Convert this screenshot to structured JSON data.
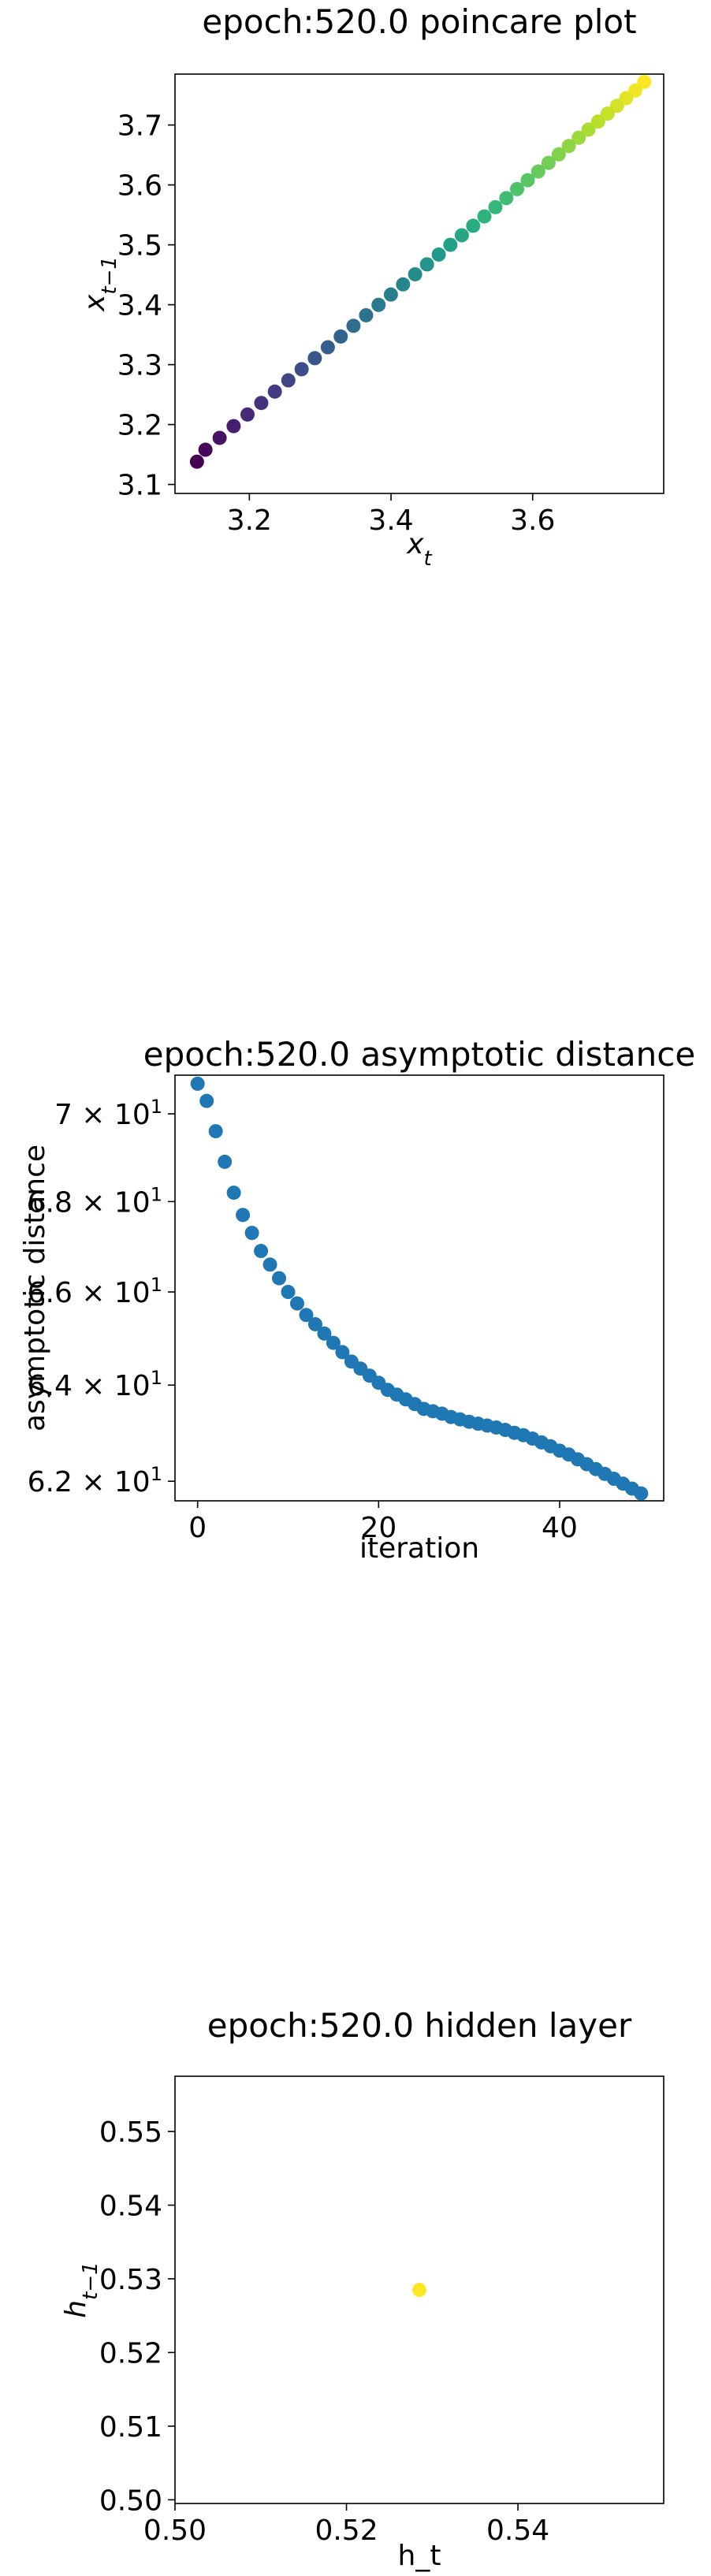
{
  "chart_data": [
    {
      "type": "scatter",
      "title": "epoch:520.0 poincare plot",
      "xlabel": "x_t",
      "ylabel": "x_{t-1}",
      "xlim": [
        3.095,
        3.785
      ],
      "ylim": [
        3.085,
        3.785
      ],
      "xticks": [
        3.2,
        3.4,
        3.6
      ],
      "xtick_labels": [
        "3.2",
        "3.4",
        "3.6"
      ],
      "yticks": [
        3.1,
        3.2,
        3.3,
        3.4,
        3.5,
        3.6,
        3.7
      ],
      "ytick_labels": [
        "3.1",
        "3.2",
        "3.3",
        "3.4",
        "3.5",
        "3.6",
        "3.7"
      ],
      "colormap": "viridis",
      "x": [
        3.7575,
        3.7448,
        3.732,
        3.719,
        3.7058,
        3.6924,
        3.6788,
        3.665,
        3.651,
        3.6368,
        3.6224,
        3.6078,
        3.593,
        3.578,
        3.5628,
        3.5474,
        3.5318,
        3.516,
        3.5,
        3.4838,
        3.4674,
        3.4508,
        3.434,
        3.417,
        3.3998,
        3.3824,
        3.3648,
        3.347,
        3.329,
        3.3108,
        3.2924,
        3.2738,
        3.255,
        3.236,
        3.2168,
        3.1974,
        3.1778,
        3.158,
        3.138,
        3.126
      ],
      "y": [
        3.772,
        3.7575,
        3.7448,
        3.732,
        3.719,
        3.7058,
        3.6924,
        3.6788,
        3.665,
        3.651,
        3.6368,
        3.6224,
        3.6078,
        3.593,
        3.578,
        3.5628,
        3.5474,
        3.5318,
        3.516,
        3.5,
        3.4838,
        3.4674,
        3.4508,
        3.434,
        3.417,
        3.3998,
        3.3824,
        3.3648,
        3.347,
        3.329,
        3.3108,
        3.2924,
        3.2738,
        3.255,
        3.236,
        3.2168,
        3.1974,
        3.1778,
        3.158,
        3.138
      ]
    },
    {
      "type": "scatter",
      "title": "epoch:520.0 asymptotic distance",
      "xlabel": "iteration",
      "ylabel": "asymptotic distance",
      "xlim": [
        -2.5,
        51.5
      ],
      "ylim": [
        61.6,
        70.9
      ],
      "yscale": "log",
      "xticks": [
        0,
        20,
        40
      ],
      "xtick_labels": [
        "0",
        "20",
        "40"
      ],
      "yticks": [
        62,
        64,
        66,
        68,
        70
      ],
      "ytick_labels": [
        "6.2 × 10¹",
        "6.4 × 10¹",
        "6.6 × 10¹",
        "6.8 × 10¹",
        "7 × 10¹"
      ],
      "color": "#1f77b4",
      "x": [
        0,
        1,
        2,
        3,
        4,
        5,
        6,
        7,
        8,
        9,
        10,
        11,
        12,
        13,
        14,
        15,
        16,
        17,
        18,
        19,
        20,
        21,
        22,
        23,
        24,
        25,
        26,
        27,
        28,
        29,
        30,
        31,
        32,
        33,
        34,
        35,
        36,
        37,
        38,
        39,
        40,
        41,
        42,
        43,
        44,
        45,
        46,
        47,
        48,
        49
      ],
      "y": [
        70.7,
        70.3,
        69.6,
        68.9,
        68.2,
        67.7,
        67.3,
        66.9,
        66.6,
        66.3,
        66.0,
        65.75,
        65.5,
        65.3,
        65.1,
        64.9,
        64.7,
        64.5,
        64.35,
        64.2,
        64.05,
        63.9,
        63.8,
        63.7,
        63.6,
        63.5,
        63.45,
        63.4,
        63.33,
        63.28,
        63.23,
        63.19,
        63.15,
        63.11,
        63.06,
        63.0,
        62.95,
        62.88,
        62.8,
        62.72,
        62.63,
        62.55,
        62.45,
        62.35,
        62.25,
        62.15,
        62.05,
        61.95,
        61.85,
        61.75
      ]
    },
    {
      "type": "scatter",
      "title": "epoch:520.0 hidden layer",
      "xlabel": "h_t",
      "ylabel": "h_{t-1}",
      "xlim": [
        0.5,
        0.557
      ],
      "ylim": [
        0.4995,
        0.5575
      ],
      "xticks": [
        0.5,
        0.52,
        0.54
      ],
      "xtick_labels": [
        "0.50",
        "0.52",
        "0.54"
      ],
      "yticks": [
        0.5,
        0.51,
        0.52,
        0.53,
        0.54,
        0.55
      ],
      "ytick_labels": [
        "0.50",
        "0.51",
        "0.52",
        "0.53",
        "0.54",
        "0.55"
      ],
      "color": "#fde725",
      "x": [
        0.5285
      ],
      "y": [
        0.5285
      ]
    }
  ]
}
